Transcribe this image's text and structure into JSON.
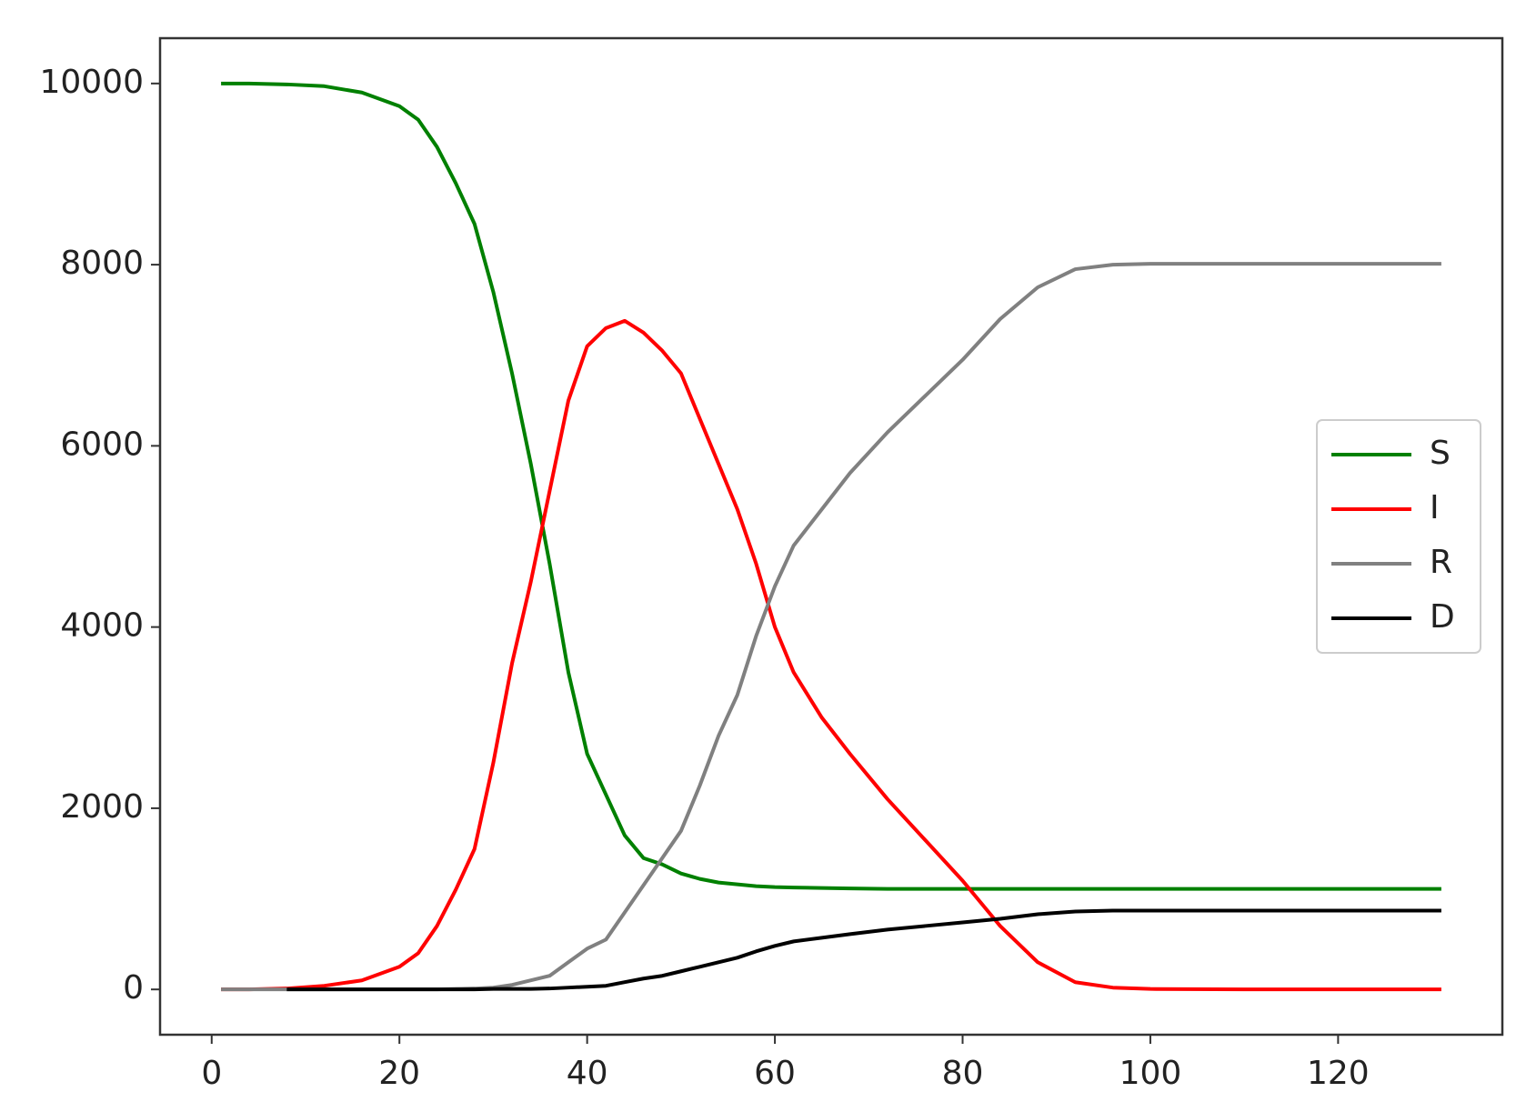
{
  "chart_data": {
    "type": "line",
    "x": [
      1,
      4,
      8,
      12,
      16,
      20,
      22,
      24,
      26,
      28,
      30,
      32,
      34,
      36,
      38,
      40,
      42,
      44,
      46,
      48,
      50,
      52,
      54,
      56,
      58,
      60,
      62,
      65,
      68,
      72,
      76,
      80,
      84,
      88,
      92,
      96,
      100,
      110,
      120,
      131
    ],
    "series": [
      {
        "name": "S",
        "color": "#008000",
        "values": [
          10000,
          10000,
          9990,
          9970,
          9900,
          9750,
          9600,
          9300,
          8900,
          8450,
          7700,
          6800,
          5800,
          4700,
          3500,
          2600,
          2150,
          1700,
          1450,
          1380,
          1280,
          1220,
          1180,
          1160,
          1140,
          1130,
          1125,
          1120,
          1115,
          1110,
          1110,
          1110,
          1110,
          1110,
          1110,
          1110,
          1110,
          1110,
          1110,
          1110
        ]
      },
      {
        "name": "I",
        "color": "#ff0000",
        "values": [
          0,
          0,
          10,
          40,
          100,
          250,
          400,
          700,
          1100,
          1550,
          2500,
          3600,
          4500,
          5500,
          6500,
          7100,
          7300,
          7380,
          7250,
          7050,
          6800,
          6300,
          5800,
          5300,
          4700,
          4000,
          3500,
          3000,
          2600,
          2100,
          1650,
          1200,
          700,
          300,
          80,
          20,
          5,
          0,
          0,
          0
        ]
      },
      {
        "name": "R",
        "color": "#808080",
        "values": [
          0,
          0,
          0,
          0,
          0,
          0,
          0,
          0,
          5,
          10,
          20,
          50,
          100,
          150,
          300,
          450,
          550,
          850,
          1150,
          1450,
          1750,
          2250,
          2800,
          3250,
          3900,
          4450,
          4900,
          5300,
          5700,
          6150,
          6550,
          6950,
          7400,
          7750,
          7950,
          8000,
          8010,
          8010,
          8010,
          8010
        ]
      },
      {
        "name": "D",
        "color": "#000000",
        "values": [
          null,
          null,
          0,
          0,
          0,
          0,
          0,
          0,
          0,
          0,
          5,
          5,
          5,
          10,
          20,
          30,
          40,
          80,
          120,
          150,
          200,
          250,
          300,
          350,
          420,
          480,
          530,
          570,
          610,
          660,
          700,
          740,
          780,
          830,
          860,
          870,
          870,
          870,
          870,
          870
        ]
      }
    ],
    "xlim": [
      -5.5,
      137.5
    ],
    "ylim": [
      -500,
      10500
    ],
    "xticks": [
      0,
      20,
      40,
      60,
      80,
      100,
      120
    ],
    "yticks": [
      0,
      2000,
      4000,
      6000,
      8000,
      10000
    ],
    "legend": "center right"
  }
}
